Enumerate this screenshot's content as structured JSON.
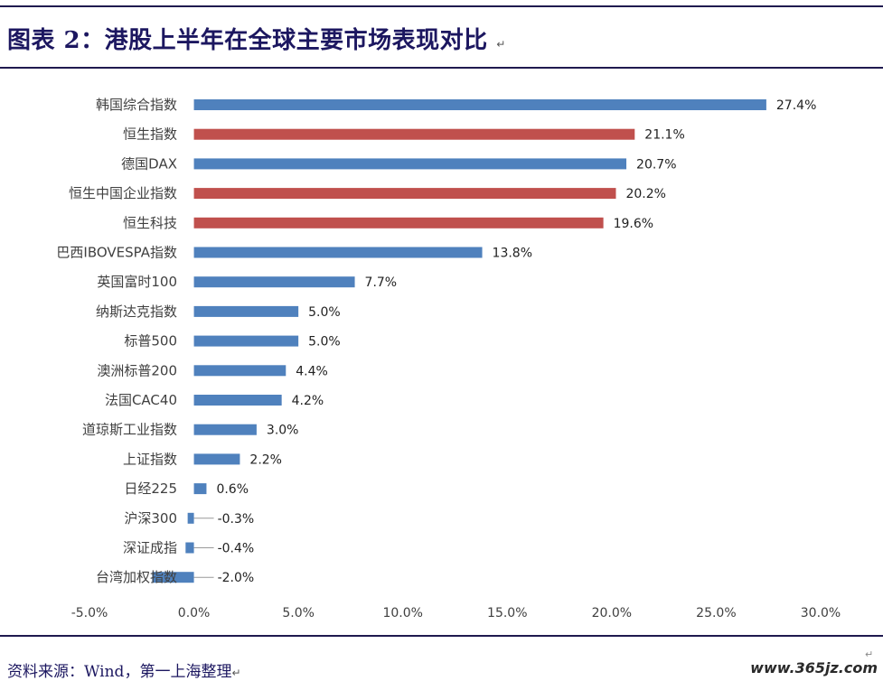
{
  "header": {
    "title": "图表 2：港股上半年在全球主要市场表现对比",
    "para_mark": "↵"
  },
  "footer": {
    "source": "资料来源：Wind，第一上海整理",
    "para_mark": "↵",
    "watermark": "www.365jz.com"
  },
  "chart_para_mark": "↵",
  "colors": {
    "blue": "#4f81bd",
    "red": "#c0504d",
    "rule": "#1f1a4f",
    "title": "#1c1760"
  },
  "chart_data": {
    "type": "bar",
    "orientation": "horizontal",
    "categories": [
      "韩国综合指数",
      "恒生指数",
      "德国DAX",
      "恒生中国企业指数",
      "恒生科技",
      "巴西IBOVESPA指数",
      "英国富时100",
      "纳斯达克指数",
      "标普500",
      "澳洲标普200",
      "法国CAC40",
      "道琼斯工业指数",
      "上证指数",
      "日经225",
      "沪深300",
      "深证成指",
      "台湾加权指数"
    ],
    "values": [
      27.4,
      21.1,
      20.7,
      20.2,
      19.6,
      13.8,
      7.7,
      5.0,
      5.0,
      4.4,
      4.2,
      3.0,
      2.2,
      0.6,
      -0.3,
      -0.4,
      -2.0
    ],
    "value_labels": [
      "27.4%",
      "21.1%",
      "20.7%",
      "20.2%",
      "19.6%",
      "13.8%",
      "7.7%",
      "5.0%",
      "5.0%",
      "4.4%",
      "4.2%",
      "3.0%",
      "2.2%",
      "0.6%",
      "-0.3%",
      "-0.4%",
      "-2.0%"
    ],
    "highlight": [
      false,
      true,
      false,
      true,
      true,
      false,
      false,
      false,
      false,
      false,
      false,
      false,
      false,
      false,
      false,
      false,
      false
    ],
    "xlim": [
      -5,
      30
    ],
    "xticks": [
      -5,
      0,
      5,
      10,
      15,
      20,
      25,
      30
    ],
    "xtick_labels": [
      "-5.0%",
      "0.0%",
      "5.0%",
      "10.0%",
      "15.0%",
      "20.0%",
      "25.0%",
      "30.0%"
    ],
    "grid": false,
    "legend": "none"
  }
}
